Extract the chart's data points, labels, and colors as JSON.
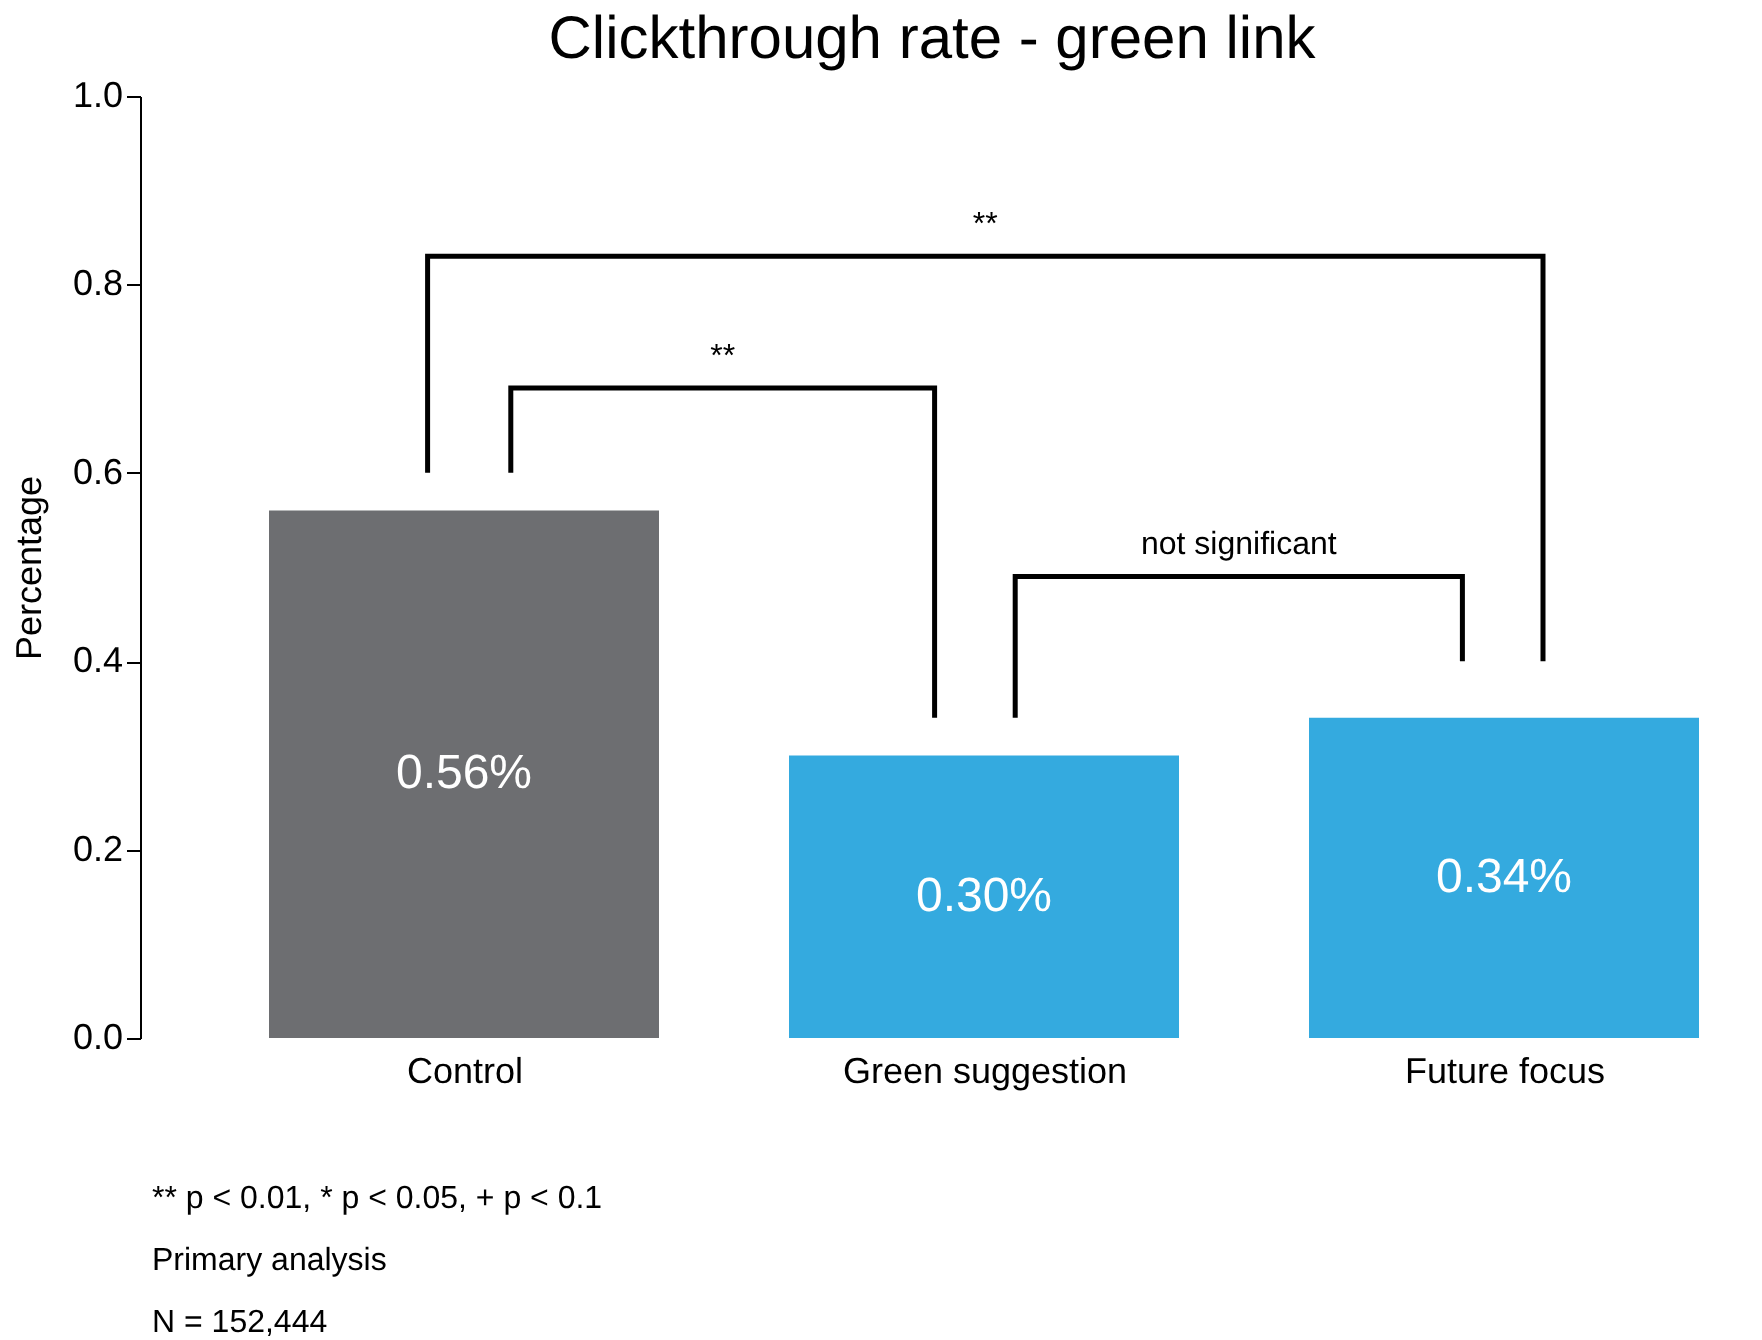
{
  "chart_data": {
    "type": "bar",
    "title": "Clickthrough rate - green link",
    "ylabel": "Percentage",
    "categories": [
      "Control",
      "Green suggestion",
      "Future focus"
    ],
    "values": [
      0.56,
      0.3,
      0.34
    ],
    "colors": [
      "#6d6e71",
      "#34aadf",
      "#34aadf"
    ],
    "value_labels": [
      "0.56%",
      "0.30%",
      "0.34%"
    ],
    "ylim": [
      0,
      1
    ],
    "yticks": [
      {
        "value": 0,
        "label": "0.0"
      },
      0.2,
      0.4,
      0.6,
      0.8,
      {
        "value": 1,
        "label": "1.0"
      }
    ],
    "grid": false,
    "annotations": [
      "**",
      "**",
      "not significant",
      "** p < 0.01, * p < 0.05, + p < 0.1",
      "Primary analysis",
      "N = 152,444"
    ]
  }
}
